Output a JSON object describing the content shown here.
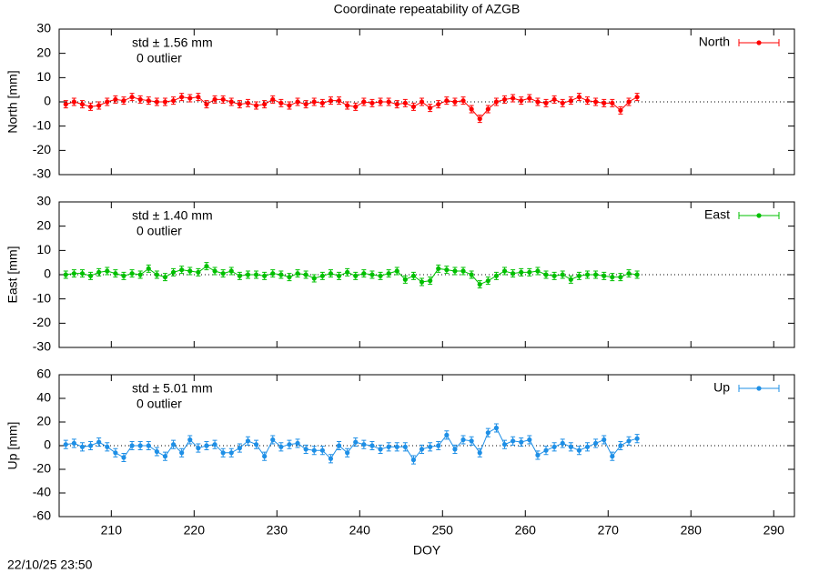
{
  "title": "Coordinate repeatability of AZGB",
  "timestamp": "22/10/25 23:50",
  "chart_data": [
    {
      "type": "line",
      "ylabel": "North [mm]",
      "annotations": [
        "std ± 1.56 mm",
        "0 outlier"
      ],
      "legend": "top-right",
      "xlim": [
        203.7,
        292.5
      ],
      "xticks": [
        210,
        220,
        230,
        240,
        250,
        260,
        270,
        280,
        290
      ],
      "ylim": [
        -30,
        30
      ],
      "yticks": [
        -30,
        -20,
        -10,
        0,
        10,
        20,
        30
      ],
      "x": [
        204.5,
        205.5,
        206.5,
        207.5,
        208.5,
        209.5,
        210.5,
        211.5,
        212.5,
        213.5,
        214.5,
        215.5,
        216.5,
        217.5,
        218.5,
        219.5,
        220.5,
        221.5,
        222.5,
        223.5,
        224.5,
        225.5,
        226.5,
        227.5,
        228.5,
        229.5,
        230.5,
        231.5,
        232.5,
        233.5,
        234.5,
        235.5,
        236.5,
        237.5,
        238.5,
        239.5,
        240.5,
        241.5,
        242.5,
        243.5,
        244.5,
        245.5,
        246.5,
        247.5,
        248.5,
        249.5,
        250.5,
        251.5,
        252.5,
        253.5,
        254.5,
        255.5,
        256.5,
        257.5,
        258.5,
        259.5,
        260.5,
        261.5,
        262.5,
        263.5,
        264.5,
        265.5,
        266.5,
        267.5,
        268.5,
        269.5,
        270.5,
        271.5,
        272.5,
        273.5
      ],
      "series": [
        {
          "name": "North",
          "color": "#ff0000",
          "error": 1.5,
          "values": [
            -1,
            0,
            -1,
            -2,
            -1.5,
            0,
            1,
            0.5,
            2,
            1,
            0.5,
            0,
            0,
            0.5,
            2,
            1.5,
            2,
            -1,
            1,
            1,
            0,
            -1,
            -0.5,
            -1.5,
            -1,
            1,
            -0.5,
            -1.5,
            0,
            -1,
            0,
            -0.5,
            0.5,
            0.5,
            -1.5,
            -2,
            0,
            -0.5,
            0,
            0,
            -1,
            -0.5,
            -2,
            0,
            -2.5,
            -1,
            0.5,
            0,
            0.5,
            -3,
            -7,
            -3,
            0,
            1,
            1.5,
            0.5,
            1.5,
            0,
            -0.5,
            1,
            -0.5,
            0.5,
            2,
            0.5,
            0,
            -0.5,
            -0.5,
            -3.5,
            0,
            2
          ]
        }
      ]
    },
    {
      "type": "line",
      "ylabel": "East [mm]",
      "annotations": [
        "std ± 1.40 mm",
        "0 outlier"
      ],
      "legend": "top-right",
      "xlim": [
        203.7,
        292.5
      ],
      "xticks": [
        210,
        220,
        230,
        240,
        250,
        260,
        270,
        280,
        290
      ],
      "ylim": [
        -30,
        30
      ],
      "yticks": [
        -30,
        -20,
        -10,
        0,
        10,
        20,
        30
      ],
      "x": [
        204.5,
        205.5,
        206.5,
        207.5,
        208.5,
        209.5,
        210.5,
        211.5,
        212.5,
        213.5,
        214.5,
        215.5,
        216.5,
        217.5,
        218.5,
        219.5,
        220.5,
        221.5,
        222.5,
        223.5,
        224.5,
        225.5,
        226.5,
        227.5,
        228.5,
        229.5,
        230.5,
        231.5,
        232.5,
        233.5,
        234.5,
        235.5,
        236.5,
        237.5,
        238.5,
        239.5,
        240.5,
        241.5,
        242.5,
        243.5,
        244.5,
        245.5,
        246.5,
        247.5,
        248.5,
        249.5,
        250.5,
        251.5,
        252.5,
        253.5,
        254.5,
        255.5,
        256.5,
        257.5,
        258.5,
        259.5,
        260.5,
        261.5,
        262.5,
        263.5,
        264.5,
        265.5,
        266.5,
        267.5,
        268.5,
        269.5,
        270.5,
        271.5,
        272.5,
        273.5
      ],
      "series": [
        {
          "name": "East",
          "color": "#00c000",
          "error": 1.5,
          "values": [
            0,
            0.5,
            0.5,
            -0.5,
            1,
            1.5,
            0.5,
            -0.5,
            0.5,
            0,
            2.5,
            0,
            -1,
            1,
            2,
            1.5,
            1,
            3.5,
            1.5,
            0.5,
            1.5,
            -0.5,
            0,
            0,
            -0.5,
            0.5,
            0,
            -1,
            0.5,
            0,
            -1.5,
            -0.5,
            0.5,
            -0.5,
            1,
            -0.5,
            0.5,
            0,
            -0.5,
            0.5,
            1.5,
            -2,
            -0.5,
            -3,
            -2.5,
            2.5,
            2,
            1.5,
            1.5,
            0,
            -4,
            -2.5,
            -0.5,
            1.5,
            0.5,
            1,
            1,
            1.5,
            0,
            -0.5,
            0,
            -2,
            -0.5,
            0,
            0,
            -0.5,
            -1,
            -1,
            0.5,
            0
          ]
        }
      ]
    },
    {
      "type": "line",
      "ylabel": "Up [mm]",
      "xlabel": "DOY",
      "annotations": [
        "std ± 5.01 mm",
        "0 outlier"
      ],
      "legend": "top-right",
      "xlim": [
        203.7,
        292.5
      ],
      "xticks": [
        210,
        220,
        230,
        240,
        250,
        260,
        270,
        280,
        290
      ],
      "ylim": [
        -60,
        60
      ],
      "yticks": [
        -60,
        -40,
        -20,
        0,
        20,
        40,
        60
      ],
      "x": [
        204.5,
        205.5,
        206.5,
        207.5,
        208.5,
        209.5,
        210.5,
        211.5,
        212.5,
        213.5,
        214.5,
        215.5,
        216.5,
        217.5,
        218.5,
        219.5,
        220.5,
        221.5,
        222.5,
        223.5,
        224.5,
        225.5,
        226.5,
        227.5,
        228.5,
        229.5,
        230.5,
        231.5,
        232.5,
        233.5,
        234.5,
        235.5,
        236.5,
        237.5,
        238.5,
        239.5,
        240.5,
        241.5,
        242.5,
        243.5,
        244.5,
        245.5,
        246.5,
        247.5,
        248.5,
        249.5,
        250.5,
        251.5,
        252.5,
        253.5,
        254.5,
        255.5,
        256.5,
        257.5,
        258.5,
        259.5,
        260.5,
        261.5,
        262.5,
        263.5,
        264.5,
        265.5,
        266.5,
        267.5,
        268.5,
        269.5,
        270.5,
        271.5,
        272.5,
        273.5
      ],
      "series": [
        {
          "name": "Up",
          "color": "#1e8fe6",
          "error": 3.5,
          "values": [
            1,
            2,
            -1,
            0,
            3,
            -1,
            -6,
            -10,
            0,
            0,
            0,
            -5,
            -9,
            1,
            -6,
            5,
            -2,
            0,
            1,
            -6,
            -6,
            -2,
            4,
            1,
            -9,
            5,
            -1,
            1,
            2,
            -3,
            -4,
            -4,
            -11,
            0,
            -6,
            3,
            1,
            0,
            -3,
            -1,
            -1,
            -1,
            -12,
            -3,
            -1,
            0,
            9,
            -3,
            5,
            4,
            -6,
            11,
            15,
            1,
            4,
            3,
            5,
            -8,
            -4,
            -1,
            2,
            -1,
            -4,
            -1,
            2,
            5,
            -9,
            0,
            4,
            6
          ]
        }
      ]
    }
  ]
}
